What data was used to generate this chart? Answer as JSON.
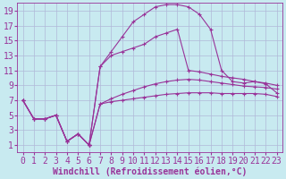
{
  "xlabel": "Windchill (Refroidissement éolien,°C)",
  "background_color": "#c8eaf0",
  "grid_color": "#b0b8d8",
  "line_color": "#993399",
  "xlim": [
    -0.5,
    23.5
  ],
  "ylim": [
    0,
    20
  ],
  "xticks": [
    0,
    1,
    2,
    3,
    4,
    5,
    6,
    7,
    8,
    9,
    10,
    11,
    12,
    13,
    14,
    15,
    16,
    17,
    18,
    19,
    20,
    21,
    22,
    23
  ],
  "yticks": [
    1,
    3,
    5,
    7,
    9,
    11,
    13,
    15,
    17,
    19
  ],
  "shared_x": [
    0,
    1,
    2,
    3,
    4,
    5,
    6
  ],
  "shared_y": [
    7.0,
    4.5,
    4.5,
    5.0,
    1.5,
    2.5,
    1.0
  ],
  "curve1_x": [
    6,
    7,
    8,
    9,
    10,
    11,
    12,
    13,
    14,
    15,
    16,
    17,
    18,
    19,
    20,
    21,
    22,
    23
  ],
  "curve1_y": [
    1.0,
    6.5,
    6.8,
    7.0,
    7.2,
    7.4,
    7.6,
    7.8,
    7.9,
    8.0,
    8.0,
    8.0,
    7.9,
    7.9,
    7.9,
    7.9,
    7.8,
    7.5
  ],
  "curve2_x": [
    6,
    7,
    8,
    9,
    10,
    11,
    12,
    13,
    14,
    15,
    16,
    17,
    18,
    19,
    20,
    21,
    22,
    23
  ],
  "curve2_y": [
    1.0,
    6.5,
    7.2,
    7.8,
    8.3,
    8.8,
    9.2,
    9.5,
    9.7,
    9.8,
    9.7,
    9.5,
    9.3,
    9.1,
    8.9,
    8.8,
    8.7,
    8.5
  ],
  "curve3_x": [
    6,
    7,
    8,
    9,
    10,
    11,
    12,
    13,
    14,
    15,
    16,
    17,
    18,
    19,
    20,
    21,
    22,
    23
  ],
  "curve3_y": [
    1.0,
    11.5,
    13.0,
    13.5,
    14.0,
    14.5,
    15.5,
    16.0,
    16.5,
    11.0,
    10.8,
    10.5,
    10.2,
    10.0,
    9.8,
    9.5,
    9.3,
    9.0
  ],
  "curve4_x": [
    6,
    7,
    8,
    9,
    10,
    11,
    12,
    13,
    14,
    15,
    16,
    17,
    18,
    19,
    20,
    21,
    22,
    23
  ],
  "curve4_y": [
    1.0,
    11.5,
    13.5,
    15.5,
    17.5,
    18.5,
    19.5,
    19.8,
    19.8,
    19.5,
    18.5,
    16.5,
    11.0,
    9.5,
    9.3,
    9.5,
    9.2,
    8.0
  ],
  "font_family": "monospace",
  "font_size": 7,
  "marker": "+",
  "markersize": 3,
  "linewidth": 0.8
}
